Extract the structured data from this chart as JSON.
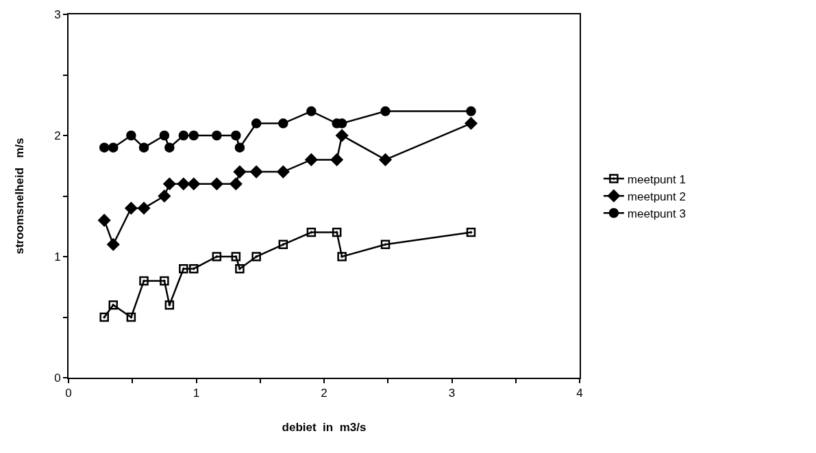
{
  "chart_data": {
    "type": "line",
    "xlabel": "debiet  in  m3/s",
    "ylabel": "stroomsnelheid   m/s",
    "x": [
      0.28,
      0.35,
      0.49,
      0.59,
      0.75,
      0.79,
      0.9,
      0.98,
      1.16,
      1.31,
      1.34,
      1.47,
      1.68,
      1.9,
      2.1,
      2.14,
      2.48,
      3.15
    ],
    "series": [
      {
        "name": "meetpunt 1",
        "color": "#000000",
        "marker": "square",
        "values": [
          0.5,
          0.6,
          0.5,
          0.8,
          0.8,
          0.6,
          0.9,
          0.9,
          1.0,
          1.0,
          0.9,
          1.0,
          1.1,
          1.2,
          1.2,
          1.0,
          1.1,
          1.2
        ]
      },
      {
        "name": "meetpunt 2",
        "color": "#000000",
        "marker": "diamond",
        "values": [
          1.3,
          1.1,
          1.4,
          1.4,
          1.5,
          1.6,
          1.6,
          1.6,
          1.6,
          1.6,
          1.7,
          1.7,
          1.7,
          1.8,
          1.8,
          2.0,
          1.8,
          2.1
        ]
      },
      {
        "name": "meetpunt 3",
        "color": "#000000",
        "marker": "circle",
        "values": [
          1.9,
          1.9,
          2.0,
          1.9,
          2.0,
          1.9,
          2.0,
          2.0,
          2.0,
          2.0,
          1.9,
          2.1,
          2.1,
          2.2,
          2.1,
          2.1,
          2.2,
          2.2
        ]
      }
    ],
    "xlim": [
      0,
      4
    ],
    "xticks": [
      0,
      {
        "value": 0.5,
        "label": null
      },
      1,
      {
        "value": 1.5,
        "label": null
      },
      2,
      {
        "value": 2.5,
        "label": null
      },
      3,
      {
        "value": 3.5,
        "label": null
      },
      4
    ],
    "ylim": [
      0,
      3
    ],
    "yticks": [
      0,
      {
        "value": 0.5,
        "label": null
      },
      1,
      {
        "value": 1.5,
        "label": null
      },
      2,
      {
        "value": 2.5,
        "label": null
      },
      3
    ],
    "legend": "right",
    "line_style": "solid"
  }
}
